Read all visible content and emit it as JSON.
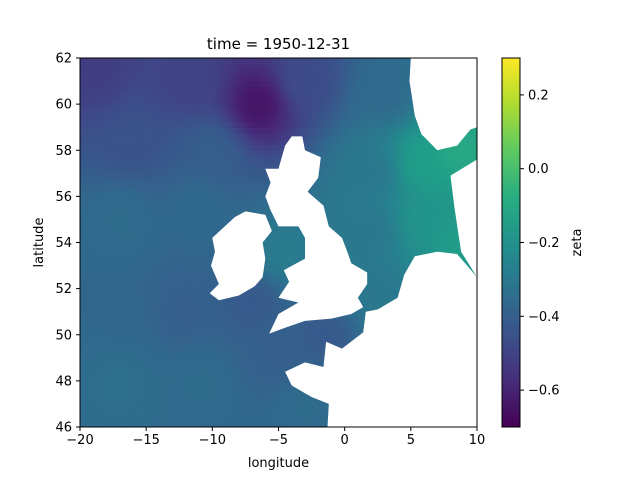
{
  "chart_data": {
    "type": "heatmap",
    "title": "time = 1950-12-31",
    "xlabel": "longitude",
    "ylabel": "latitude",
    "xlim": [
      -20,
      10
    ],
    "ylim": [
      46,
      62
    ],
    "x_ticks": [
      -20,
      -15,
      -10,
      -5,
      0,
      5,
      10
    ],
    "x_tick_labels": [
      "−20",
      "−15",
      "−10",
      "−5",
      "0",
      "5",
      "10"
    ],
    "y_ticks": [
      46,
      48,
      50,
      52,
      54,
      56,
      58,
      60,
      62
    ],
    "y_tick_labels": [
      "46",
      "48",
      "50",
      "52",
      "54",
      "56",
      "58",
      "60",
      "62"
    ],
    "colorbar": {
      "label": "zeta",
      "colormap": "viridis",
      "vmin": -0.7,
      "vmax": 0.3,
      "ticks": [
        -0.6,
        -0.4,
        -0.2,
        0.0,
        0.2
      ],
      "tick_labels": [
        "−0.6",
        "−0.4",
        "−0.2",
        "0.0",
        "0.2"
      ]
    },
    "field_samples": [
      {
        "lon": -19,
        "lat": 61.5,
        "zeta": -0.52
      },
      {
        "lon": -12,
        "lat": 61,
        "zeta": -0.5
      },
      {
        "lon": -6.5,
        "lat": 60,
        "zeta": -0.65
      },
      {
        "lon": -3,
        "lat": 61,
        "zeta": -0.47
      },
      {
        "lon": 3,
        "lat": 60.5,
        "zeta": -0.36
      },
      {
        "lon": -16,
        "lat": 58.5,
        "zeta": -0.45
      },
      {
        "lon": -10,
        "lat": 58,
        "zeta": -0.4
      },
      {
        "lon": 2,
        "lat": 57,
        "zeta": -0.3
      },
      {
        "lon": 6,
        "lat": 57.5,
        "zeta": -0.14
      },
      {
        "lon": 8.5,
        "lat": 58,
        "zeta": -0.1
      },
      {
        "lon": -17,
        "lat": 55,
        "zeta": -0.35
      },
      {
        "lon": -11,
        "lat": 55.5,
        "zeta": -0.36
      },
      {
        "lon": 2,
        "lat": 54.5,
        "zeta": -0.3
      },
      {
        "lon": 6,
        "lat": 55,
        "zeta": -0.18
      },
      {
        "lon": 8.5,
        "lat": 54,
        "zeta": -0.15
      },
      {
        "lon": -4.5,
        "lat": 53.5,
        "zeta": -0.28
      },
      {
        "lon": -17,
        "lat": 51,
        "zeta": -0.37
      },
      {
        "lon": -12,
        "lat": 51,
        "zeta": -0.4
      },
      {
        "lon": -7,
        "lat": 51.5,
        "zeta": -0.42
      },
      {
        "lon": 2.5,
        "lat": 51.5,
        "zeta": -0.3
      },
      {
        "lon": -17,
        "lat": 48,
        "zeta": -0.34
      },
      {
        "lon": -11,
        "lat": 48,
        "zeta": -0.35
      },
      {
        "lon": -5,
        "lat": 49,
        "zeta": -0.4
      },
      {
        "lon": -3,
        "lat": 47,
        "zeta": -0.35
      },
      {
        "lon": -1.5,
        "lat": 50,
        "zeta": -0.42
      }
    ]
  },
  "colors": {
    "land": "#ffffff",
    "frame": "#000000"
  }
}
